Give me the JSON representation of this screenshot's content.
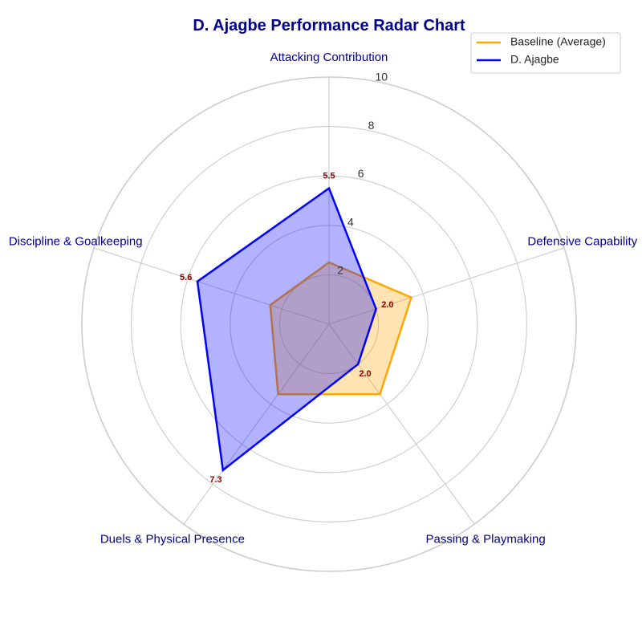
{
  "chart_data": {
    "type": "radar",
    "title": "D. Ajagbe Performance Radar Chart",
    "categories": [
      "Attacking Contribution",
      "Defensive Capability",
      "Passing & Playmaking",
      "Duels & Physical Presence",
      "Discipline & Goalkeeping"
    ],
    "rlim": [
      0,
      10
    ],
    "rticks": [
      2,
      4,
      6,
      8,
      10
    ],
    "grid": true,
    "legend_position": "top-right",
    "series": [
      {
        "name": "Baseline (Average)",
        "values": [
          2.5,
          3.5,
          3.5,
          3.5,
          2.5
        ],
        "color": "#FFA500",
        "fill_opacity": 0.3,
        "show_labels": false
      },
      {
        "name": "D. Ajagbe",
        "values": [
          5.5,
          2.0,
          2.0,
          7.3,
          5.6
        ],
        "color": "#0000FF",
        "fill_opacity": 0.3,
        "show_labels": true
      }
    ],
    "colors": {
      "title": "#00008B",
      "axis_label": "#00008B",
      "data_label": "#8B0000",
      "grid": "#CCCCCC"
    }
  }
}
